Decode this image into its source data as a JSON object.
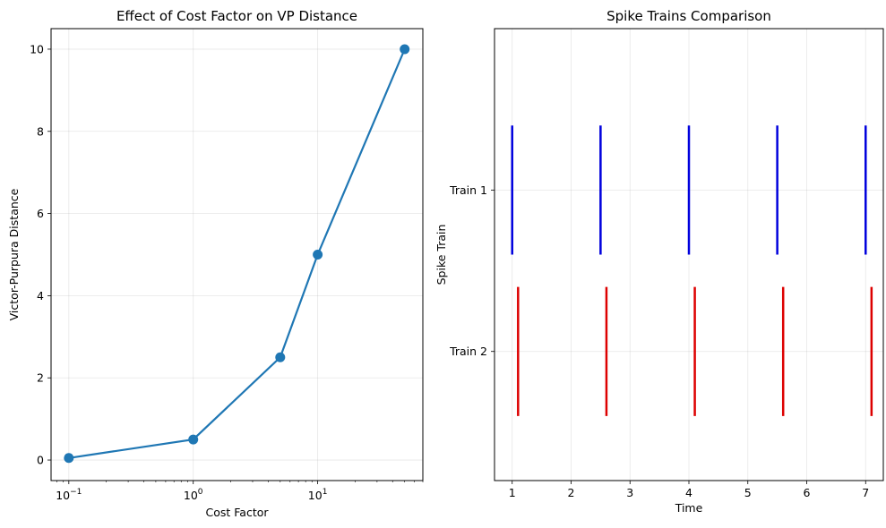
{
  "chart_data": [
    {
      "type": "line",
      "title": "Effect of Cost Factor on VP Distance",
      "xlabel": "Cost Factor",
      "ylabel": "Victor-Purpura Distance",
      "xscale": "log",
      "xlim": [
        0.072,
        70
      ],
      "ylim": [
        -0.5,
        10.5
      ],
      "x_ticks": [
        {
          "value": 0.1,
          "label": "10",
          "exp": "−1"
        },
        {
          "value": 1,
          "label": "10",
          "exp": "0"
        },
        {
          "value": 10,
          "label": "10",
          "exp": "1"
        }
      ],
      "y_ticks": [
        0,
        2,
        4,
        6,
        8,
        10
      ],
      "grid": true,
      "color": "#1f77b4",
      "series": [
        {
          "x": [
            0.1,
            1,
            5,
            10,
            50
          ],
          "y": [
            0.05,
            0.5,
            2.5,
            5,
            10
          ]
        }
      ]
    },
    {
      "type": "spike-raster",
      "title": "Spike Trains Comparison",
      "xlabel": "Time",
      "ylabel": "Spike Train",
      "xlim": [
        0.7,
        7.3
      ],
      "ylim": [
        0.2,
        3.0
      ],
      "x_ticks": [
        1,
        2,
        3,
        4,
        5,
        6,
        7
      ],
      "grid": true,
      "series": [
        {
          "name": "Train 1",
          "y": 2,
          "color": "#0000dd",
          "times": [
            1,
            2.5,
            4,
            5.5,
            7
          ]
        },
        {
          "name": "Train 2",
          "y": 1,
          "color": "#dd0000",
          "times": [
            1.1,
            2.6,
            4.1,
            5.6,
            7.1
          ]
        }
      ],
      "y_tick_labels": [
        {
          "value": 2,
          "label": "Train 1"
        },
        {
          "value": 1,
          "label": "Train 2"
        }
      ]
    }
  ]
}
